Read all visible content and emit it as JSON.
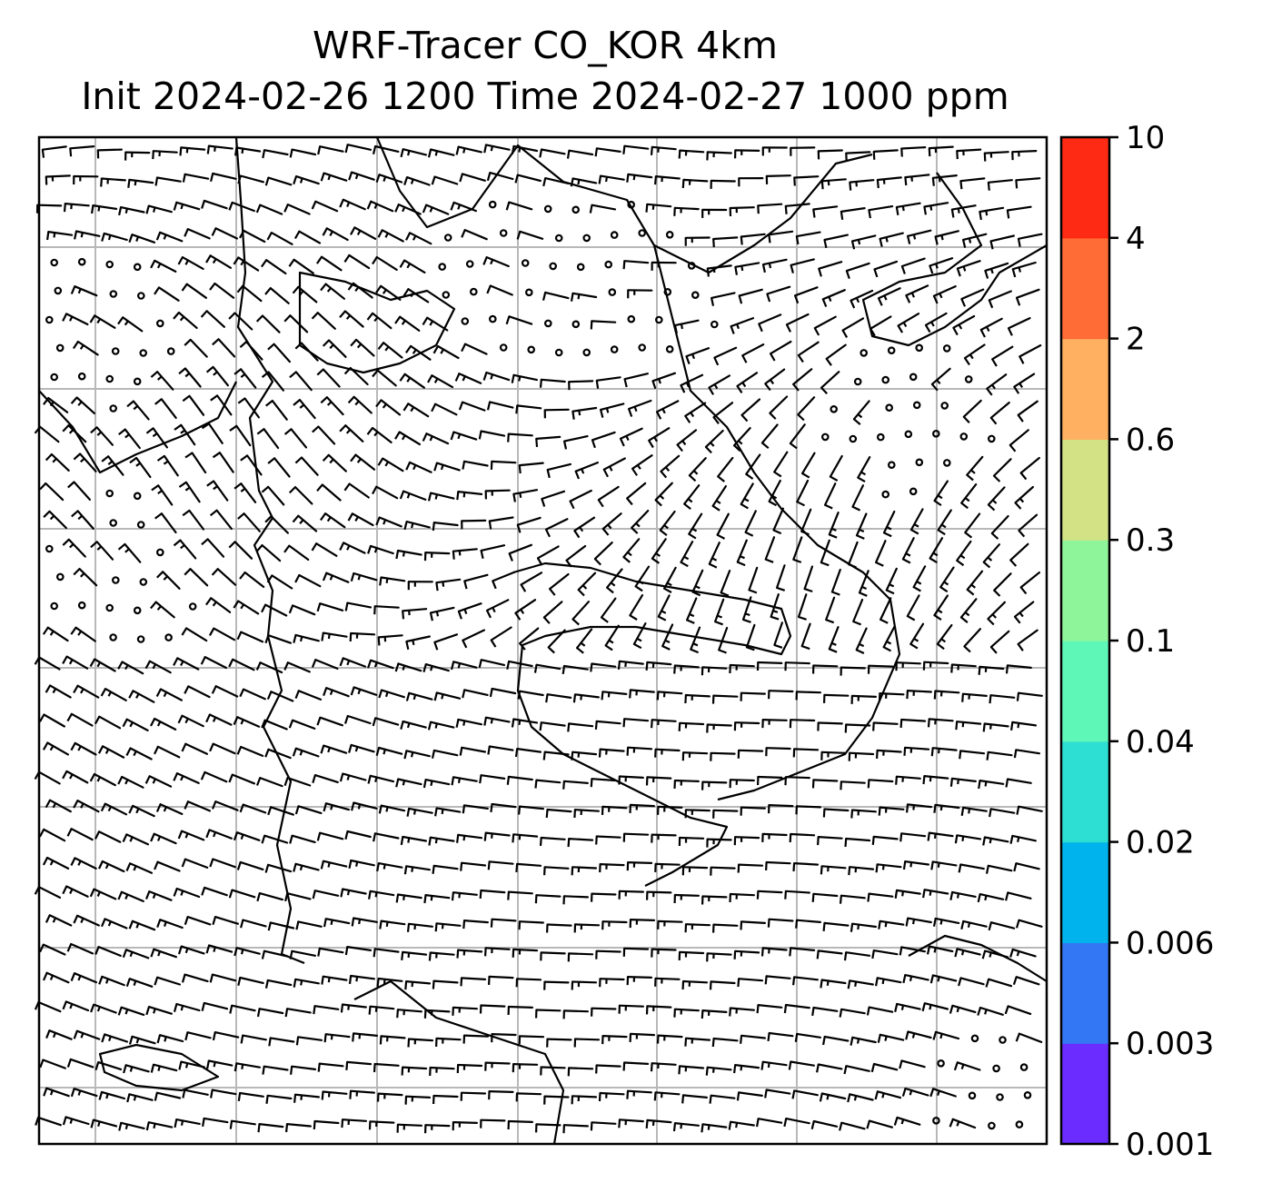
{
  "title": {
    "line1": "WRF-Tracer CO_KOR 4km",
    "line2": "Init 2024-02-26 1200 Time 2024-02-27 1000 ppm"
  },
  "chart_data": {
    "type": "heatmap",
    "title": "WRF-Tracer CO_KOR 4km",
    "subtitle": "Init 2024-02-26 1200 Time 2024-02-27 1000 ppm",
    "xlabel": "",
    "ylabel": "",
    "grid": true,
    "overlay": "wind barbs and coastlines",
    "colorbar": {
      "placement": "right",
      "ticks": [
        "10",
        "4",
        "2",
        "0.6",
        "0.3",
        "0.1",
        "0.04",
        "0.02",
        "0.006",
        "0.003",
        "0.001"
      ],
      "colors_bottom_to_top": [
        "#6a2cff",
        "#3477f4",
        "#00b3ec",
        "#2ddfd2",
        "#5ff7b8",
        "#8ff59a",
        "#d2e284",
        "#ffb061",
        "#ff6c36",
        "#ff2a14"
      ]
    }
  }
}
